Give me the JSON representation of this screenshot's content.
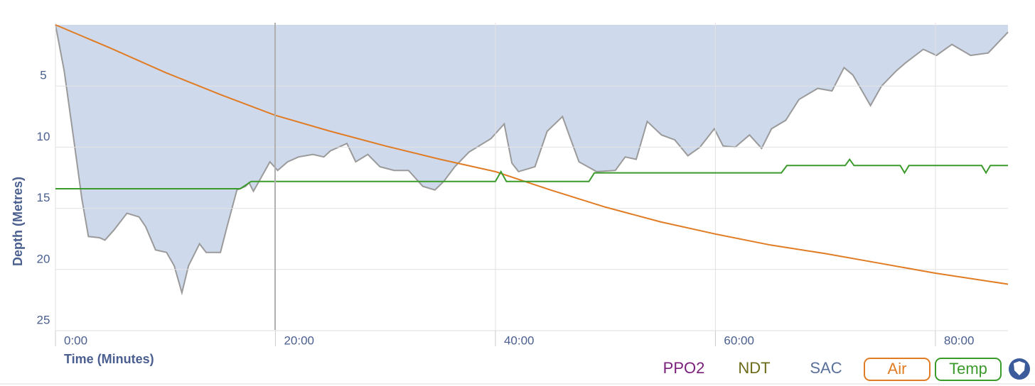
{
  "chart_data": {
    "type": "dive-profile",
    "y_label": "Depth (Metres)",
    "x_label": "Time (Minutes)",
    "ylim": [
      0,
      25
    ],
    "y_inverted": true,
    "yticks": [
      5,
      10,
      15,
      20,
      25
    ],
    "y2lim": [
      0,
      25
    ],
    "xlim": [
      0,
      86.6
    ],
    "xticks": [
      {
        "value": 0,
        "label": "0:00"
      },
      {
        "value": 20,
        "label": "20:00"
      },
      {
        "value": 40,
        "label": "40:00"
      },
      {
        "value": 60,
        "label": "60:00"
      },
      {
        "value": 80,
        "label": "80:00"
      }
    ],
    "grid": true,
    "series": [
      {
        "type": "area",
        "color": "#cfd9ec",
        "stroke": "#9a9a9a",
        "x": [
          0,
          0.8,
          1.7,
          2.4,
          3.0,
          4.0,
          4.5,
          5.3,
          6.5,
          7.6,
          8.2,
          9.1,
          10.1,
          10.8,
          11.5,
          12.1,
          13.1,
          13.7,
          15.0,
          15.6,
          16.5,
          17.3,
          17.6,
          18.0,
          18.5,
          19.5,
          20.2,
          21.1,
          22.1,
          23.4,
          24.4,
          25.0,
          26.5,
          27.3,
          28.4,
          29.5,
          30.8,
          32.1,
          33.4,
          34.5,
          35.3,
          36.3,
          37.6,
          39.6,
          40.8,
          41.5,
          42.1,
          43.6,
          44.7,
          46.1,
          46.7,
          47.6,
          49.2,
          50.9,
          51.8,
          52.8,
          53.8,
          55.1,
          56.3,
          57.5,
          58.6,
          59.9,
          60.7,
          61.8,
          63.1,
          64.2,
          65.1,
          66.4,
          67.6,
          69.3,
          70.6,
          71.7,
          72.5,
          74.1,
          75.1,
          76.4,
          77.3,
          78.9,
          80.1,
          81.5,
          83.2,
          84.8,
          86.6
        ],
        "values": [
          0,
          3.8,
          9.6,
          14.2,
          17.3,
          17.4,
          17.6,
          16.8,
          15.4,
          15.7,
          16.5,
          18.4,
          18.6,
          19.7,
          21.9,
          19.7,
          17.9,
          18.6,
          18.6,
          16.5,
          13.5,
          13.2,
          12.9,
          13.6,
          12.8,
          11.2,
          11.9,
          11.2,
          10.8,
          10.6,
          10.8,
          10.3,
          9.7,
          11.2,
          10.6,
          11.6,
          11.9,
          11.9,
          13.2,
          13.5,
          12.8,
          11.6,
          10.4,
          9.3,
          8.1,
          11.3,
          12.0,
          11.6,
          8.7,
          7.5,
          9.0,
          11.2,
          12.0,
          11.9,
          10.8,
          11.0,
          7.9,
          9.0,
          9.4,
          10.7,
          10.0,
          8.5,
          9.9,
          10.0,
          9.0,
          10.1,
          8.5,
          7.8,
          6.1,
          5.2,
          5.4,
          3.5,
          4.1,
          6.6,
          5.0,
          3.8,
          3.1,
          2.0,
          2.5,
          1.6,
          2.5,
          2.3,
          0.6
        ]
      },
      {
        "type": "line",
        "name": "Air",
        "color": "#e07c24",
        "axis": "y2",
        "x": [
          0,
          5,
          10,
          15,
          20,
          25,
          30,
          35,
          40,
          45,
          50,
          55,
          60,
          65,
          70,
          75,
          80,
          86.6
        ],
        "values": [
          0,
          1.9,
          3.9,
          5.7,
          7.4,
          8.7,
          9.9,
          11.0,
          12.0,
          13.5,
          14.9,
          16.1,
          17.1,
          18.0,
          18.7,
          19.5,
          20.3,
          21.2
        ]
      },
      {
        "type": "line",
        "name": "Temp",
        "color": "#3a9a2a",
        "axis": "y2",
        "x": [
          0,
          16.8,
          17.8,
          40,
          40.5,
          41,
          48.5,
          49,
          66,
          66.5,
          71.8,
          72.2,
          72.6,
          76.8,
          77.2,
          77.6,
          84.2,
          84.6,
          85,
          86.6
        ],
        "values": [
          13.4,
          13.4,
          12.8,
          12.8,
          12.0,
          12.8,
          12.8,
          12.1,
          12.1,
          11.5,
          11.5,
          11.0,
          11.5,
          11.5,
          12.1,
          11.5,
          11.5,
          12.1,
          11.5,
          11.5
        ]
      }
    ],
    "inactive_legend": [
      {
        "name": "PPO2",
        "color": "#7a1f7a"
      },
      {
        "name": "NDT",
        "color": "#6b6b1a"
      },
      {
        "name": "SAC",
        "color": "#5a6f9a"
      }
    ]
  }
}
